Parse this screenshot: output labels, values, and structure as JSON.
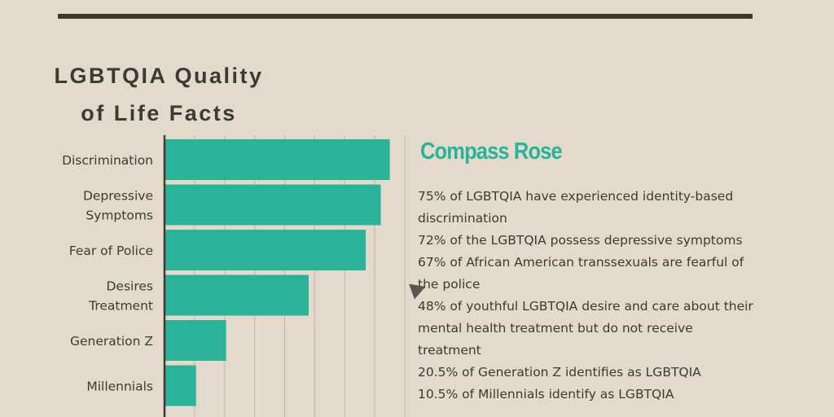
{
  "title_line1": "LGBTQIA Quality",
  "title_line2": "of Life Facts",
  "brand": "Compass Rose",
  "colors": {
    "bar": "#2bb39a",
    "background": "#e3dacb",
    "text": "#3d3a35",
    "brand": "#2bb39a",
    "rule": "#3f362c"
  },
  "facts": [
    "75% of LGBTQIA have experienced identity-based discrimination",
    "72% of the LGBTQIA possess depressive symptoms",
    "67% of African American transsexuals are fearful of the police",
    "48% of youthful LGBTQIA desire and care about their mental health treatment but do not receive treatment",
    "20.5% of Generation Z identifies as LGBTQIA",
    "10.5% of Millennials identify as LGBTQIA"
  ],
  "chart_data": {
    "type": "bar",
    "orientation": "horizontal",
    "categories": [
      [
        "Discrimination"
      ],
      [
        "Depressive",
        "Symptoms"
      ],
      [
        "Fear of Police"
      ],
      [
        "Desires",
        "Treatment"
      ],
      [
        "Generation Z"
      ],
      [
        "Millennials"
      ]
    ],
    "values": [
      75,
      72,
      67,
      48,
      20.5,
      10.5
    ],
    "xlim": [
      0,
      80
    ],
    "grid": true,
    "grid_step": 10,
    "xlabel": "",
    "ylabel": ""
  }
}
